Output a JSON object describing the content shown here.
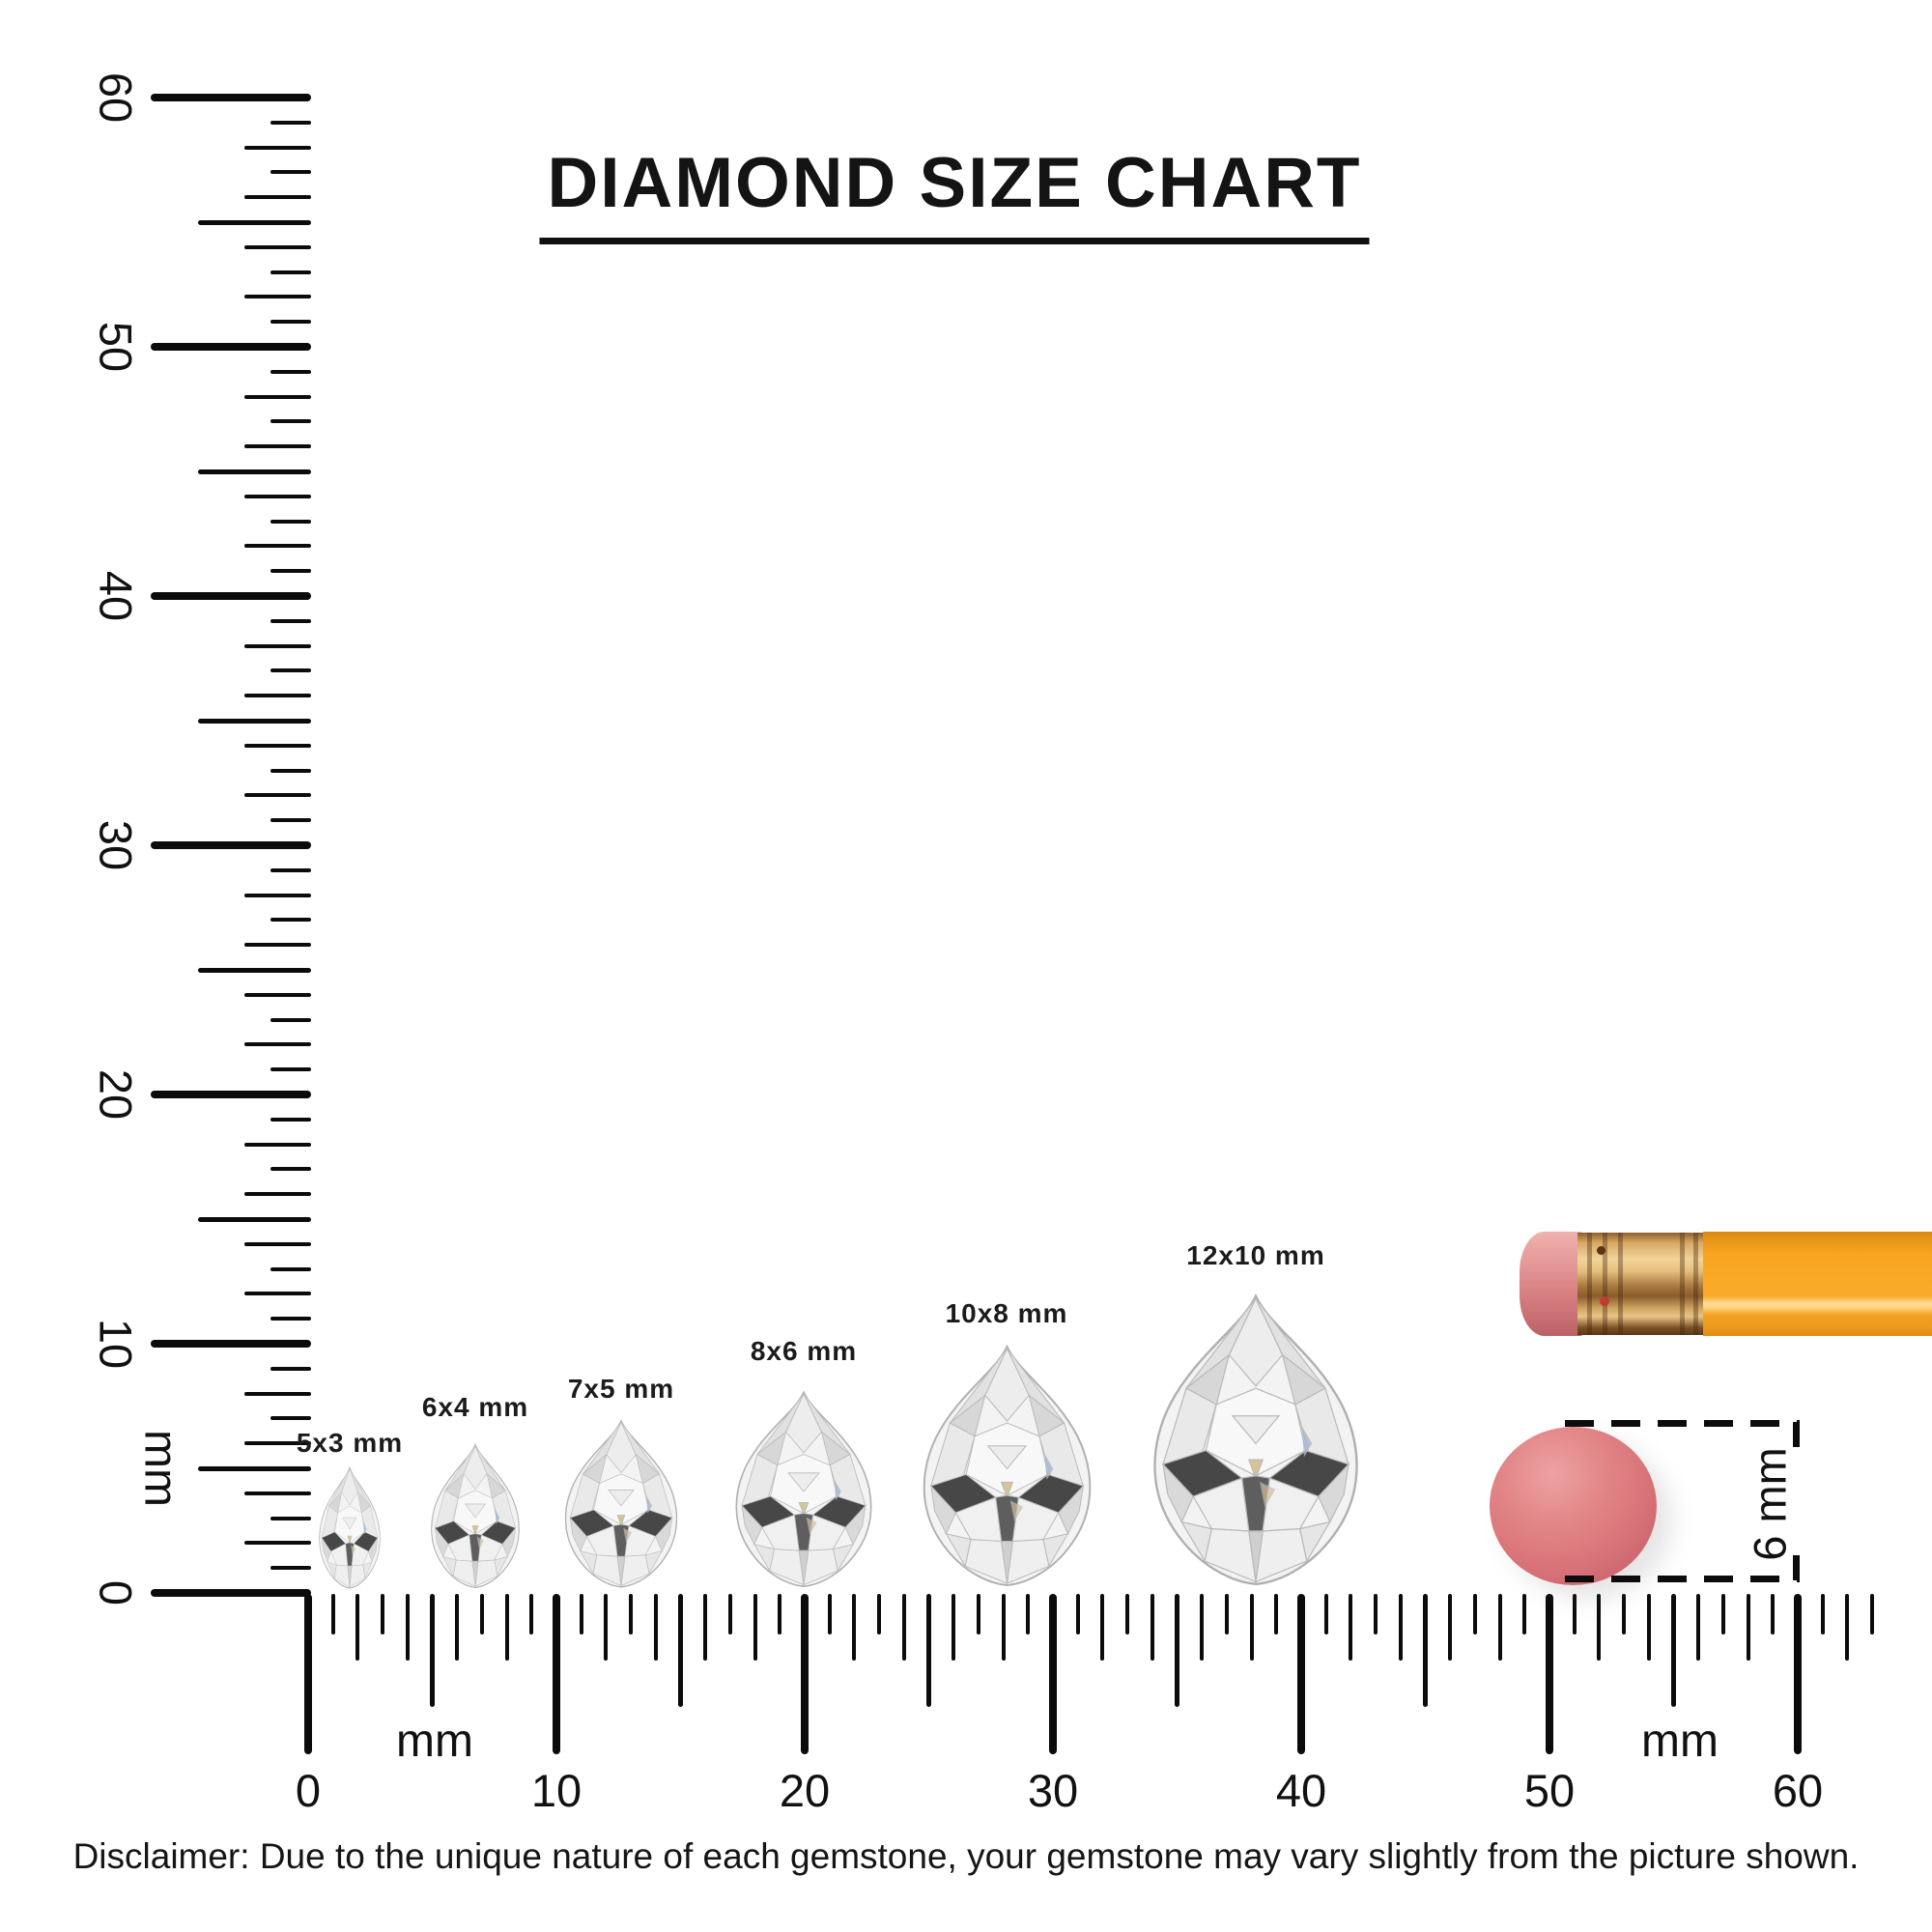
{
  "title": "DIAMOND SIZE CHART",
  "rulers": {
    "vertical": {
      "unit": "mm",
      "tick_labels": [
        "0",
        "10",
        "20",
        "30",
        "40",
        "50",
        "60"
      ],
      "range_mm": [
        0,
        60
      ]
    },
    "horizontal": {
      "unit_left": "mm",
      "unit_right": "mm",
      "tick_labels": [
        "0",
        "10",
        "20",
        "30",
        "40",
        "50",
        "60"
      ],
      "range_mm": [
        0,
        63
      ]
    }
  },
  "diamonds": [
    {
      "label": "5x3 mm",
      "height_mm": 5,
      "width_mm": 3,
      "shape": "pear"
    },
    {
      "label": "6x4 mm",
      "height_mm": 6,
      "width_mm": 4,
      "shape": "pear"
    },
    {
      "label": "7x5 mm",
      "height_mm": 7,
      "width_mm": 5,
      "shape": "pear"
    },
    {
      "label": "8x6 mm",
      "height_mm": 8,
      "width_mm": 6,
      "shape": "pear"
    },
    {
      "label": "10x8 mm",
      "height_mm": 10,
      "width_mm": 8,
      "shape": "pear"
    },
    {
      "label": "12x10 mm",
      "height_mm": 12,
      "width_mm": 10,
      "shape": "pear"
    }
  ],
  "pencil": {
    "body_color": "#f7a522",
    "eraser_color": "#da8385",
    "ferrule_color": "#d8a964"
  },
  "eraser_dot": {
    "label": "6 mm",
    "diameter_mm": 6,
    "color": "#da767b"
  },
  "disclaimer": "Disclaimer: Due to the unique nature of each gemstone, your gemstone may vary slightly from the picture shown."
}
